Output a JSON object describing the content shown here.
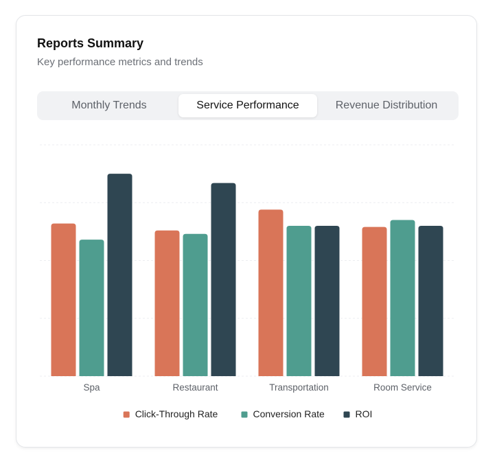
{
  "header": {
    "title": "Reports Summary",
    "subtitle": "Key performance metrics and trends"
  },
  "tabs": [
    {
      "label": "Monthly Trends",
      "active": false
    },
    {
      "label": "Service Performance",
      "active": true
    },
    {
      "label": "Revenue Distribution",
      "active": false
    }
  ],
  "chart_data": {
    "type": "bar",
    "title": "",
    "xlabel": "",
    "ylabel": "",
    "ylim": [
      0,
      100
    ],
    "grid": true,
    "legend_position": "bottom",
    "categories": [
      "Spa",
      "Restaurant",
      "Transportation",
      "Room Service"
    ],
    "series": [
      {
        "name": "Click-Through Rate",
        "color": "#d97558",
        "values": [
          66,
          63,
          72,
          64.5
        ]
      },
      {
        "name": "Conversion Rate",
        "color": "#4f9d8f",
        "values": [
          59,
          61.5,
          65,
          67.5
        ]
      },
      {
        "name": "ROI",
        "color": "#2f4652",
        "values": [
          87.5,
          83.5,
          65,
          65
        ]
      }
    ]
  }
}
